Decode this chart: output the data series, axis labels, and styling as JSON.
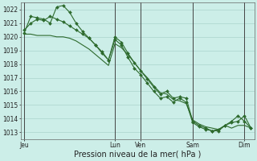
{
  "title": "Pression niveau de la mer( hPa )",
  "bg_color": "#cceee8",
  "grid_color": "#aad4cc",
  "line_color": "#2d6a2d",
  "ylim": [
    1012.5,
    1022.5
  ],
  "yticks": [
    1013,
    1014,
    1015,
    1016,
    1017,
    1018,
    1019,
    1020,
    1021,
    1022
  ],
  "day_labels": [
    "Jeu",
    "Lun",
    "Ven",
    "Sam",
    "Dim"
  ],
  "day_positions": [
    0,
    14,
    18,
    26,
    34
  ],
  "vline_positions": [
    0,
    14,
    18,
    26,
    34
  ],
  "series1": [
    1020.3,
    1021.5,
    1021.4,
    1021.3,
    1021.0,
    1022.2,
    1022.3,
    1021.8,
    1021.0,
    1020.4,
    1019.9,
    1019.4,
    1018.8,
    1018.3,
    1019.8,
    1019.4,
    1018.5,
    1017.7,
    1017.2,
    1016.6,
    1016.0,
    1015.5,
    1015.6,
    1015.2,
    1015.5,
    1015.2,
    1013.7,
    1013.4,
    1013.2,
    1013.1,
    1013.1,
    1013.5,
    1013.8,
    1014.2,
    1013.8,
    1013.3
  ],
  "series2": [
    1020.5,
    1021.0,
    1021.3,
    1021.2,
    1021.5,
    1021.3,
    1021.1,
    1020.8,
    1020.5,
    1020.2,
    1019.9,
    1019.4,
    1018.9,
    1018.3,
    1020.0,
    1019.6,
    1018.8,
    1018.1,
    1017.5,
    1016.9,
    1016.3,
    1015.8,
    1016.0,
    1015.5,
    1015.6,
    1015.5,
    1013.8,
    1013.5,
    1013.3,
    1013.1,
    1013.2,
    1013.5,
    1013.7,
    1013.8,
    1014.2,
    1013.3
  ],
  "series3": [
    1020.2,
    1020.2,
    1020.1,
    1020.1,
    1020.1,
    1020.0,
    1020.0,
    1019.9,
    1019.7,
    1019.4,
    1019.1,
    1018.7,
    1018.3,
    1017.9,
    1019.5,
    1019.2,
    1018.7,
    1018.1,
    1017.5,
    1017.0,
    1016.4,
    1015.9,
    1015.8,
    1015.4,
    1015.3,
    1015.1,
    1013.9,
    1013.6,
    1013.4,
    1013.3,
    1013.2,
    1013.5,
    1013.3,
    1013.5,
    1013.5,
    1013.3
  ],
  "n_points": 36,
  "tick_fontsize": 5.5,
  "xlabel_fontsize": 7
}
